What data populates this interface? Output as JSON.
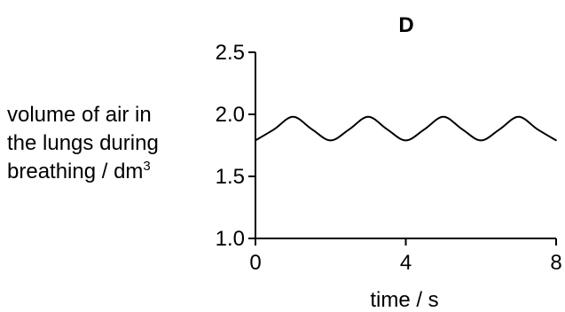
{
  "chart_data": {
    "type": "line",
    "title": "D",
    "xlabel": "time / s",
    "ylabel_lines": [
      "volume of air in",
      "the lungs during",
      "breathing / dm"
    ],
    "ylabel_superscript": "3",
    "xlim": [
      0,
      8
    ],
    "ylim": [
      1.0,
      2.5
    ],
    "x_ticks": [
      0,
      4,
      8
    ],
    "x_tick_labels": [
      "0",
      "4",
      "8"
    ],
    "y_ticks": [
      1.0,
      1.5,
      2.0,
      2.5
    ],
    "y_tick_labels": [
      "1.0",
      "1.5",
      "2.0",
      "2.5"
    ],
    "grid": false,
    "series": [
      {
        "x": [
          0,
          0.5,
          1,
          1.5,
          2,
          2.5,
          3,
          3.5,
          4,
          4.5,
          5,
          5.5,
          6,
          6.5,
          7,
          7.5,
          8
        ],
        "y": [
          1.79,
          1.88,
          1.98,
          1.88,
          1.79,
          1.88,
          1.98,
          1.88,
          1.79,
          1.88,
          1.98,
          1.88,
          1.79,
          1.88,
          1.98,
          1.88,
          1.79
        ]
      }
    ],
    "line_color": "#000000"
  }
}
